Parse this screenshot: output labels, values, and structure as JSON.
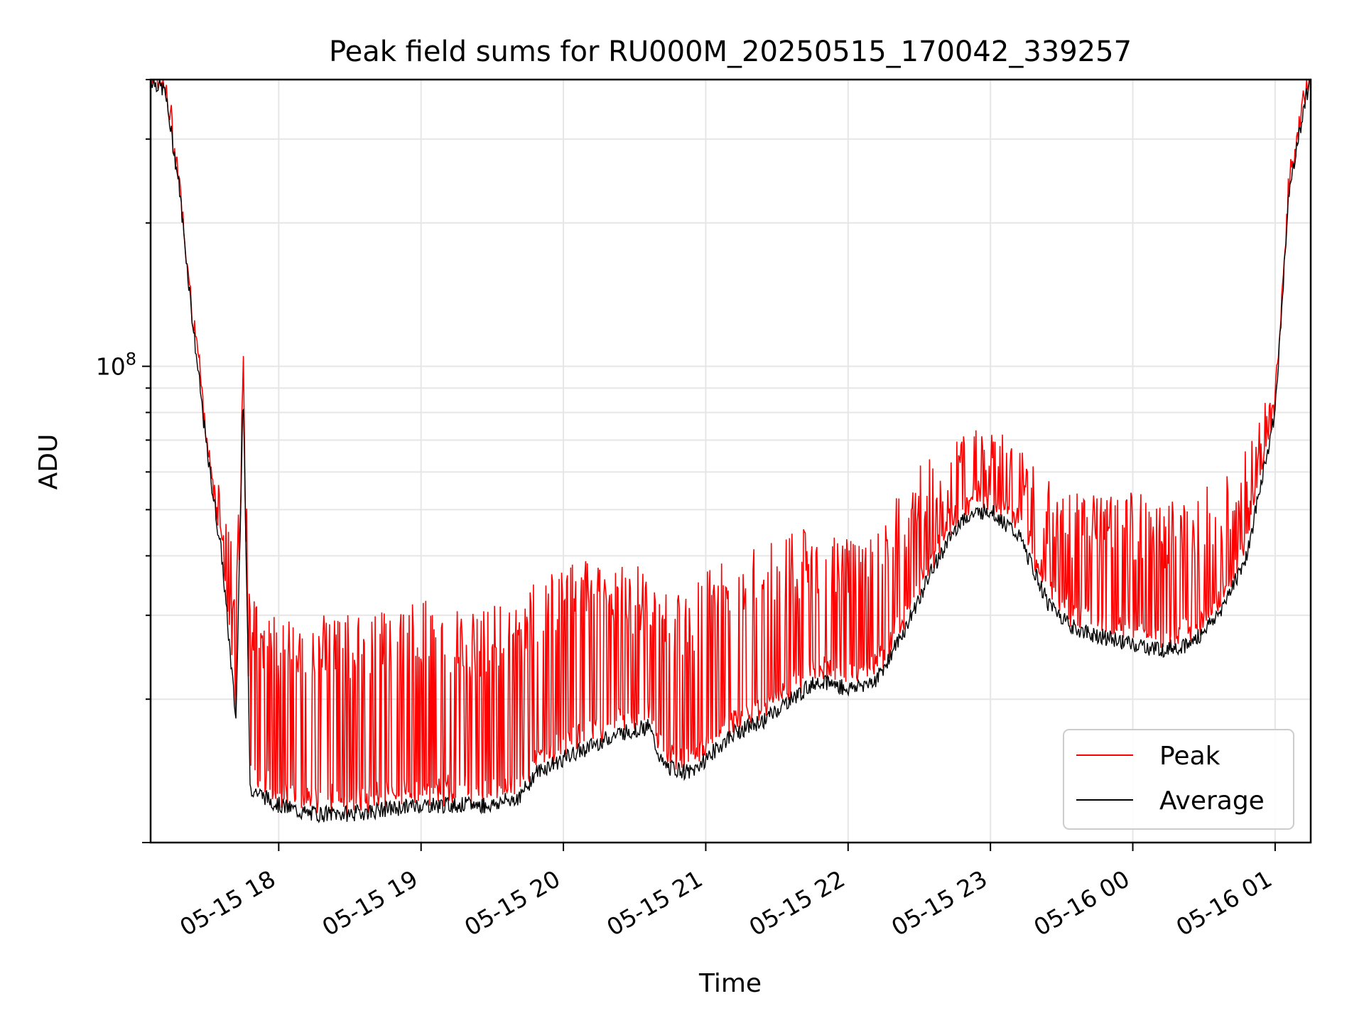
{
  "chart_data": {
    "type": "line",
    "title": "Peak field sums for RU000M_20250515_170042_339257",
    "xlabel": "Time",
    "ylabel": "ADU",
    "yscale": "log",
    "ylim": [
      10000000,
      400000000
    ],
    "xlim_hours": [
      17.1,
      25.25
    ],
    "y_tick_label": "10^8",
    "x_ticks": [
      {
        "value": 18,
        "label": "05-15 18"
      },
      {
        "value": 19,
        "label": "05-15 19"
      },
      {
        "value": 20,
        "label": "05-15 20"
      },
      {
        "value": 21,
        "label": "05-15 21"
      },
      {
        "value": 22,
        "label": "05-15 22"
      },
      {
        "value": 23,
        "label": "05-15 23"
      },
      {
        "value": 24,
        "label": "05-16 00"
      },
      {
        "value": 25,
        "label": "05-16 01"
      }
    ],
    "grid": true,
    "legend": {
      "position": "lower-right",
      "entries": [
        {
          "name": "Peak",
          "color": "#ff0000"
        },
        {
          "name": "Average",
          "color": "#000000"
        }
      ]
    },
    "series": [
      {
        "name": "Peak",
        "color": "#ff0000",
        "x": [
          17.1,
          17.2,
          17.3,
          17.4,
          17.5,
          17.6,
          17.7,
          17.75,
          17.8,
          18.0,
          18.2,
          18.5,
          18.8,
          19.0,
          19.3,
          19.5,
          19.7,
          19.8,
          20.0,
          20.2,
          20.4,
          20.6,
          20.7,
          20.9,
          21.0,
          21.2,
          21.4,
          21.6,
          21.8,
          22.0,
          22.2,
          22.4,
          22.6,
          22.8,
          23.0,
          23.2,
          23.4,
          23.6,
          23.8,
          24.0,
          24.2,
          24.4,
          24.6,
          24.8,
          25.0,
          25.1,
          25.25
        ],
        "values": [
          400000000,
          380000000,
          240000000,
          120000000,
          70000000,
          55000000,
          36000000,
          110000000,
          33000000,
          28000000,
          29000000,
          29000000,
          30000000,
          31000000,
          29000000,
          30000000,
          30000000,
          34000000,
          37000000,
          38000000,
          37000000,
          36000000,
          32000000,
          33000000,
          36000000,
          39000000,
          41000000,
          43000000,
          44000000,
          44000000,
          42000000,
          55000000,
          66000000,
          70000000,
          72000000,
          65000000,
          56000000,
          52000000,
          51000000,
          52000000,
          50000000,
          51000000,
          55000000,
          64000000,
          90000000,
          250000000,
          410000000
        ]
      },
      {
        "name": "Average",
        "color": "#000000",
        "x": [
          17.1,
          17.2,
          17.3,
          17.4,
          17.5,
          17.6,
          17.7,
          17.75,
          17.8,
          18.0,
          18.2,
          18.5,
          18.8,
          19.0,
          19.3,
          19.5,
          19.7,
          19.8,
          20.0,
          20.2,
          20.4,
          20.6,
          20.7,
          20.9,
          21.0,
          21.2,
          21.4,
          21.6,
          21.8,
          22.0,
          22.2,
          22.4,
          22.6,
          22.8,
          23.0,
          23.2,
          23.4,
          23.6,
          23.8,
          24.0,
          24.2,
          24.4,
          24.6,
          24.8,
          25.0,
          25.1,
          25.25
        ],
        "values": [
          400000000,
          380000000,
          240000000,
          120000000,
          65000000,
          40000000,
          18000000,
          90000000,
          13000000,
          12000000,
          11500000,
          11500000,
          11800000,
          12000000,
          12000000,
          12000000,
          12500000,
          14000000,
          15000000,
          16000000,
          17000000,
          17500000,
          14500000,
          14000000,
          15000000,
          17000000,
          18000000,
          20000000,
          22000000,
          21000000,
          22000000,
          28000000,
          38000000,
          48000000,
          50000000,
          44000000,
          32000000,
          28000000,
          27000000,
          26000000,
          25500000,
          26000000,
          30000000,
          40000000,
          80000000,
          240000000,
          410000000
        ]
      }
    ]
  }
}
